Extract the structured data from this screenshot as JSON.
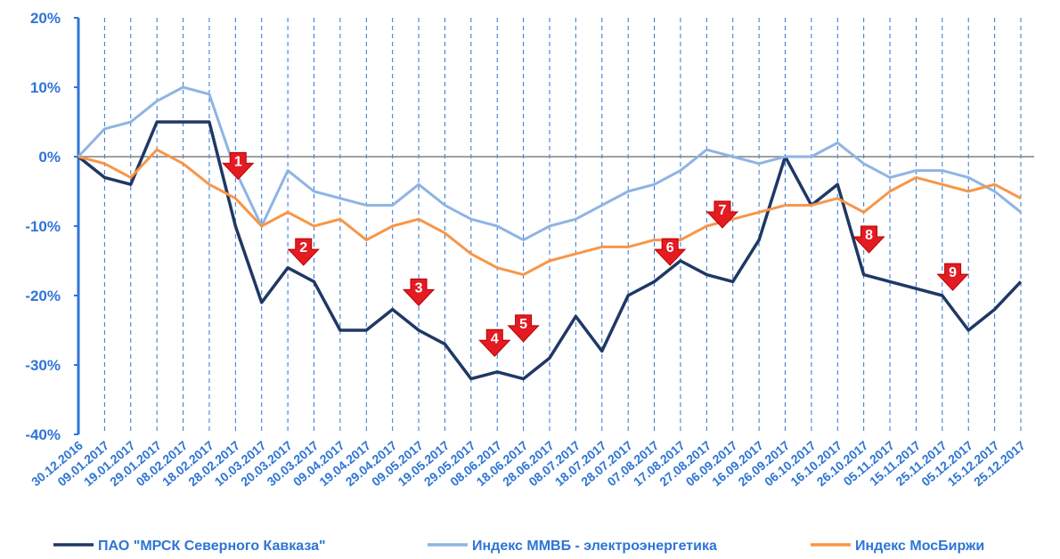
{
  "chart_data": {
    "type": "line",
    "categories": [
      "30.12.2016",
      "09.01.2017",
      "19.01.2017",
      "29.01.2017",
      "08.02.2017",
      "18.02.2017",
      "28.02.2017",
      "10.03.2017",
      "20.03.2017",
      "30.03.2017",
      "09.04.2017",
      "19.04.2017",
      "29.04.2017",
      "09.05.2017",
      "19.05.2017",
      "29.05.2017",
      "08.06.2017",
      "18.06.2017",
      "28.06.2017",
      "08.07.2017",
      "18.07.2017",
      "28.07.2017",
      "07.08.2017",
      "17.08.2017",
      "27.08.2017",
      "06.09.2017",
      "16.09.2017",
      "26.09.2017",
      "06.10.2017",
      "16.10.2017",
      "26.10.2017",
      "05.11.2017",
      "15.11.2017",
      "25.11.2017",
      "05.12.2017",
      "15.12.2017",
      "25.12.2017"
    ],
    "series": [
      {
        "name": "ПАО \"МРСК Северного Кавказа\"",
        "color": "#1f3864",
        "values": [
          0,
          -3,
          -4,
          5,
          5,
          5,
          -10,
          -21,
          -16,
          -18,
          -25,
          -25,
          -22,
          -25,
          -27,
          -32,
          -31,
          -32,
          -29,
          -23,
          -28,
          -20,
          -18,
          -15,
          -17,
          -18,
          -12,
          0,
          -7,
          -4,
          -17,
          -18,
          -19,
          -20,
          -25,
          -22,
          -18
        ]
      },
      {
        "name": "Индекс ММВБ - электроэнергетика",
        "color": "#8eb4e3",
        "values": [
          0,
          4,
          5,
          8,
          10,
          9,
          -2,
          -10,
          -2,
          -5,
          -6,
          -7,
          -7,
          -4,
          -7,
          -9,
          -10,
          -12,
          -10,
          -9,
          -7,
          -5,
          -4,
          -2,
          1,
          0,
          -1,
          0,
          0,
          2,
          -1,
          -3,
          -2,
          -2,
          -3,
          -5,
          -8
        ]
      },
      {
        "name": "Индекс МосБиржи",
        "color": "#f79646",
        "values": [
          0,
          -1,
          -3,
          1,
          -1,
          -4,
          -6,
          -10,
          -8,
          -10,
          -9,
          -12,
          -10,
          -9,
          -11,
          -14,
          -16,
          -17,
          -15,
          -14,
          -13,
          -13,
          -12,
          -12,
          -10,
          -9,
          -8,
          -7,
          -7,
          -6,
          -8,
          -5,
          -3,
          -4,
          -5,
          -4,
          -6
        ]
      }
    ],
    "ylim": [
      -40,
      20
    ],
    "yticks": [
      {
        "value": -40,
        "label": "-40%"
      },
      {
        "value": -30,
        "label": "-30%"
      },
      {
        "value": -20,
        "label": "-20%"
      },
      {
        "value": -10,
        "label": "-10%"
      },
      {
        "value": 0,
        "label": "0%"
      },
      {
        "value": 10,
        "label": "10%"
      },
      {
        "value": 20,
        "label": "20%"
      }
    ],
    "annotations": [
      {
        "text": "1",
        "at": 6.1,
        "y": -1.2
      },
      {
        "text": "2",
        "at": 8.6,
        "y": -13.6
      },
      {
        "text": "3",
        "at": 13.0,
        "y": -19.4
      },
      {
        "text": "4",
        "at": 15.9,
        "y": -26.7
      },
      {
        "text": "5",
        "at": 17.0,
        "y": -24.6
      },
      {
        "text": "6",
        "at": 22.6,
        "y": -13.6
      },
      {
        "text": "7",
        "at": 24.6,
        "y": -8.2
      },
      {
        "text": "8",
        "at": 30.2,
        "y": -11.8
      },
      {
        "text": "9",
        "at": 33.4,
        "y": -17.2
      }
    ]
  }
}
